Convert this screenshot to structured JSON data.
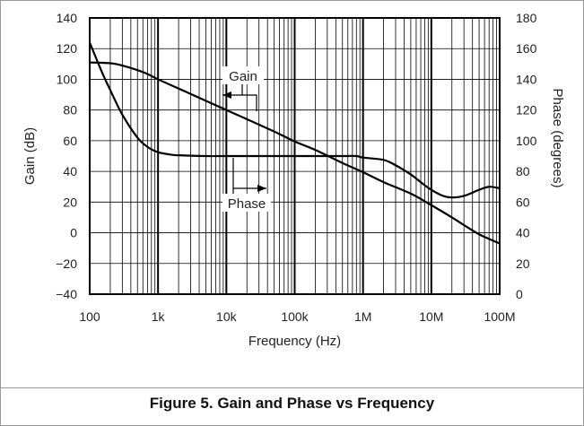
{
  "chart_data": {
    "type": "line",
    "caption": "Figure 5. Gain and Phase vs Frequency",
    "xlabel": "Frequency (Hz)",
    "ylabel_left": "Gain (dB)",
    "ylabel_right": "Phase (degrees)",
    "x_scale": "log",
    "xlim": [
      100,
      100000000
    ],
    "ylim_left": [
      -40,
      140
    ],
    "ylim_right": [
      0,
      180
    ],
    "grid": true,
    "x_ticks": [
      {
        "value": 100,
        "label": "100"
      },
      {
        "value": 1000,
        "label": "1k"
      },
      {
        "value": 10000,
        "label": "10k"
      },
      {
        "value": 100000,
        "label": "100k"
      },
      {
        "value": 1000000,
        "label": "1M"
      },
      {
        "value": 10000000,
        "label": "10M"
      },
      {
        "value": 100000000,
        "label": "100M"
      }
    ],
    "y_ticks_left": [
      {
        "value": 140,
        "label": "140"
      },
      {
        "value": 120,
        "label": "120"
      },
      {
        "value": 100,
        "label": "100"
      },
      {
        "value": 80,
        "label": "80"
      },
      {
        "value": 60,
        "label": "60"
      },
      {
        "value": 40,
        "label": "40"
      },
      {
        "value": 20,
        "label": "20"
      },
      {
        "value": 0,
        "label": "0"
      },
      {
        "value": -20,
        "label": "−20"
      },
      {
        "value": -40,
        "label": "−40"
      }
    ],
    "y_ticks_right": [
      {
        "value": 180,
        "label": "180"
      },
      {
        "value": 160,
        "label": "160"
      },
      {
        "value": 140,
        "label": "140"
      },
      {
        "value": 120,
        "label": "120"
      },
      {
        "value": 100,
        "label": "100"
      },
      {
        "value": 80,
        "label": "80"
      },
      {
        "value": 60,
        "label": "60"
      },
      {
        "value": 40,
        "label": "40"
      },
      {
        "value": 20,
        "label": "20"
      },
      {
        "value": 0,
        "label": "0"
      }
    ],
    "series": [
      {
        "name": "Gain",
        "axis": "left",
        "points": [
          [
            100,
            111
          ],
          [
            200,
            110.5
          ],
          [
            300,
            109
          ],
          [
            500,
            106
          ],
          [
            700,
            103.5
          ],
          [
            1000,
            100
          ],
          [
            2000,
            94
          ],
          [
            3000,
            90.5
          ],
          [
            5000,
            86
          ],
          [
            10000,
            80
          ],
          [
            20000,
            74
          ],
          [
            50000,
            66
          ],
          [
            100000,
            59.5
          ],
          [
            200000,
            54
          ],
          [
            500000,
            45.5
          ],
          [
            1000000,
            39.5
          ],
          [
            2000000,
            33
          ],
          [
            5000000,
            25.5
          ],
          [
            10000000,
            18
          ],
          [
            20000000,
            10
          ],
          [
            30000000,
            5
          ],
          [
            50000000,
            -1
          ],
          [
            70000000,
            -4
          ],
          [
            100000000,
            -7
          ]
        ]
      },
      {
        "name": "Phase",
        "axis": "right",
        "points": [
          [
            100,
            164
          ],
          [
            150,
            145
          ],
          [
            200,
            133
          ],
          [
            300,
            117
          ],
          [
            500,
            102
          ],
          [
            700,
            96
          ],
          [
            1000,
            92.5
          ],
          [
            1500,
            91
          ],
          [
            2000,
            90.5
          ],
          [
            5000,
            90
          ],
          [
            10000,
            90
          ],
          [
            100000,
            90
          ],
          [
            500000,
            90
          ],
          [
            800000,
            90
          ],
          [
            1000000,
            89
          ],
          [
            2000000,
            87.5
          ],
          [
            3000000,
            84
          ],
          [
            5000000,
            78
          ],
          [
            7000000,
            73
          ],
          [
            10000000,
            68
          ],
          [
            15000000,
            64
          ],
          [
            20000000,
            63
          ],
          [
            30000000,
            64
          ],
          [
            50000000,
            68
          ],
          [
            70000000,
            70
          ],
          [
            100000000,
            69
          ]
        ]
      }
    ],
    "annotations": [
      {
        "text": "Gain",
        "points_to": "Gain"
      },
      {
        "text": "Phase",
        "points_to": "Phase"
      }
    ]
  }
}
